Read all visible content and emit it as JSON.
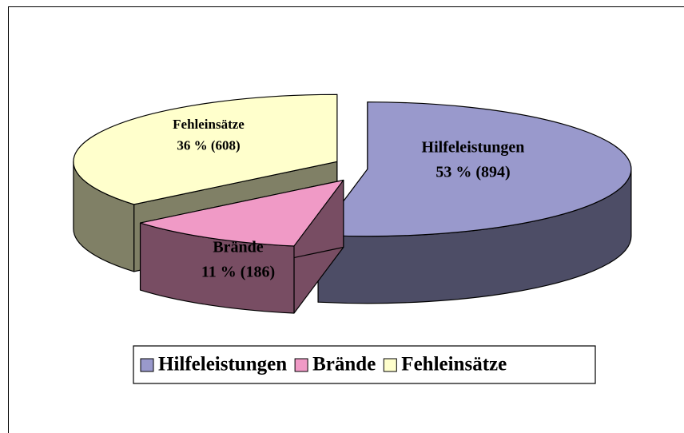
{
  "chart_data": {
    "type": "pie",
    "categories": [
      "Hilfeleistungen",
      "Brände",
      "Fehleinsätze"
    ],
    "values": [
      53,
      11,
      36
    ],
    "value_labels": [
      "53 % (894)",
      "11 % (186)",
      "36 % (608)"
    ],
    "colors": [
      "#9999cc",
      "#f09ac6",
      "#ffffcc"
    ],
    "legend": "bottom"
  }
}
